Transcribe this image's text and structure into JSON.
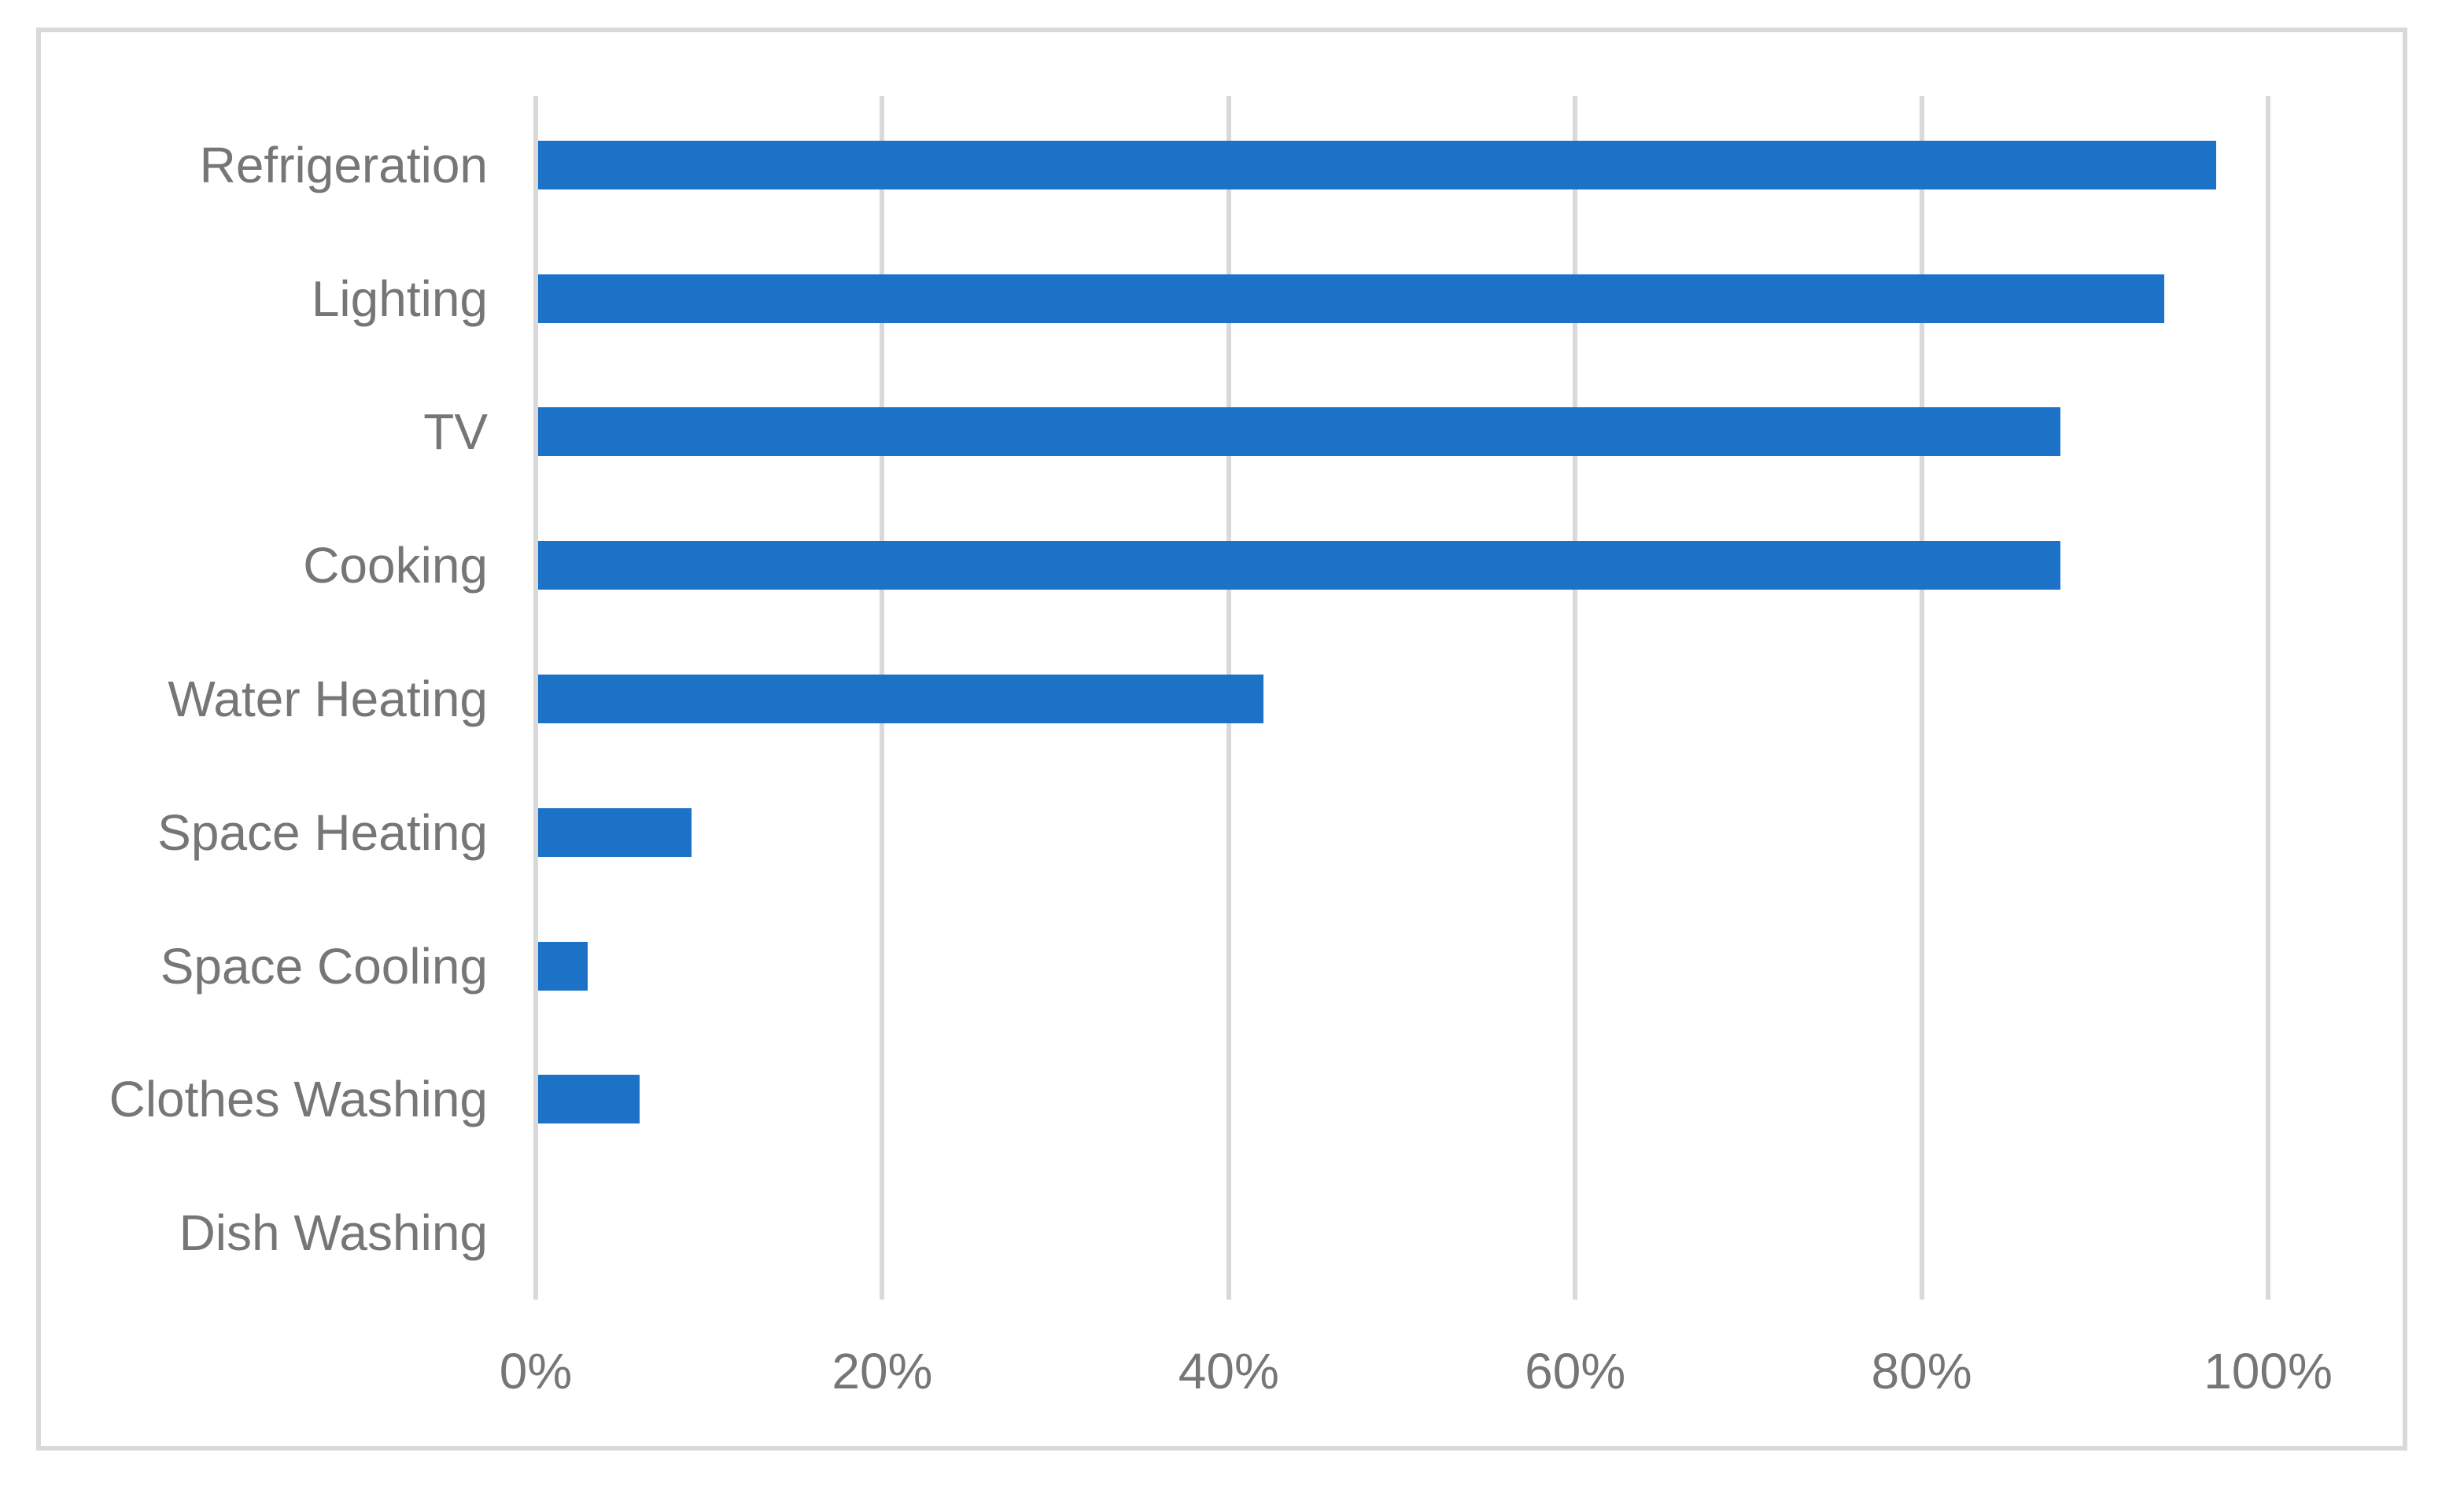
{
  "chart_data": {
    "type": "bar",
    "orientation": "horizontal",
    "title": "",
    "xlabel": "",
    "ylabel": "",
    "categories": [
      "Refrigeration",
      "Lighting",
      "TV",
      "Cooking",
      "Water Heating",
      "Space Heating",
      "Space Cooling",
      "Clothes Washing",
      "Dish Washing"
    ],
    "values": [
      97,
      94,
      88,
      88,
      42,
      9,
      3,
      6,
      0
    ],
    "unit": "%",
    "x_tick_values": [
      0,
      20,
      40,
      60,
      80,
      100
    ],
    "x_tick_labels": [
      "0%",
      "20%",
      "40%",
      "60%",
      "80%",
      "100%"
    ],
    "xlim": [
      0,
      100
    ],
    "grid": true,
    "legend": false,
    "colors": {
      "bar": "#1B72C6",
      "gridline": "#D9D9D9",
      "axis_line": "#D9D9D9",
      "category_label": "#767676",
      "tick_label": "#767676",
      "chart_border": "#D9D9D9",
      "background": "#FFFFFF"
    }
  }
}
